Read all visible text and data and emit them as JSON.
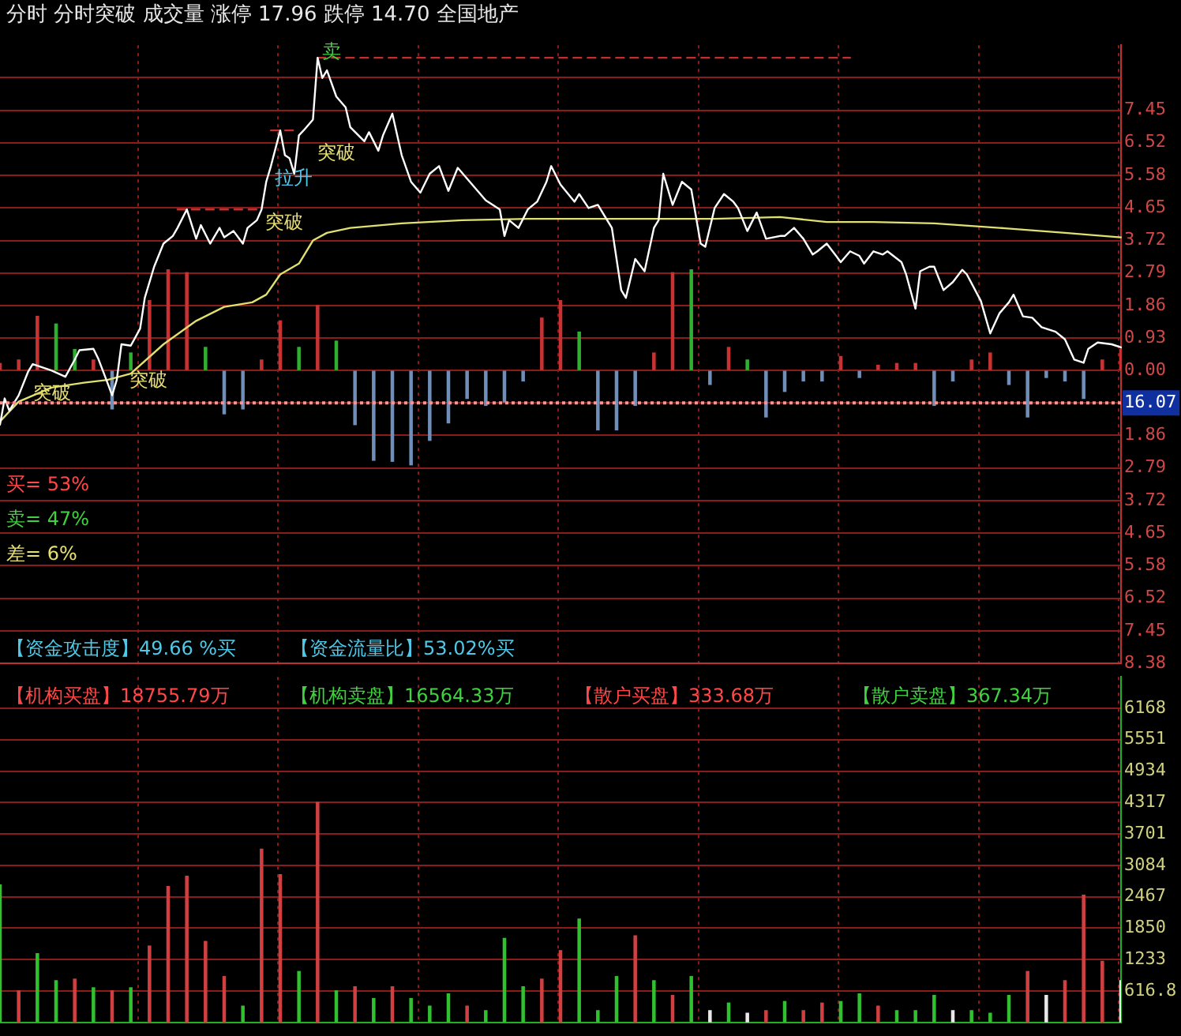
{
  "chart_data": [
    {
      "type": "line",
      "title": "分时 分时突破 成交量 涨停 17.96 跌停 14.70 全国地产",
      "categories": [
        null,
        null,
        null,
        null,
        null,
        null,
        null,
        null,
        null,
        null,
        null,
        null,
        null,
        null,
        null,
        null,
        null,
        null,
        null,
        null,
        null,
        null,
        null,
        null,
        null,
        null,
        null,
        null,
        null,
        null,
        null,
        null,
        null,
        null,
        null,
        null,
        null,
        null,
        null,
        null,
        null,
        null,
        null,
        null,
        null,
        null,
        null,
        null,
        null,
        null,
        null,
        null,
        null,
        null,
        null,
        null,
        null,
        null,
        null,
        null,
        null,
        null,
        null,
        null,
        null,
        null,
        null,
        null,
        null,
        null,
        null,
        null,
        null,
        null,
        null,
        null,
        null,
        null,
        null,
        null,
        null,
        null,
        null,
        null,
        null,
        null,
        null,
        null,
        null,
        null,
        null,
        null,
        null,
        null,
        null,
        null,
        null,
        null,
        null,
        null,
        null,
        null,
        null,
        null,
        null,
        null,
        null,
        null,
        null,
        null,
        null,
        null,
        null,
        null,
        null,
        null,
        null,
        null,
        null,
        null,
        null,
        null,
        null,
        null,
        null,
        null,
        null,
        null,
        null,
        null,
        null,
        null,
        null,
        null,
        null,
        null,
        null,
        null,
        null,
        null,
        null,
        null,
        null,
        null,
        null,
        null,
        null,
        null,
        null,
        null,
        null,
        null,
        null,
        null,
        null,
        null,
        null,
        null,
        null,
        null,
        null,
        null,
        null,
        null,
        null,
        null,
        null,
        null,
        null,
        null,
        null,
        null,
        null,
        null,
        null,
        null,
        null,
        null,
        null,
        null,
        null,
        null,
        null,
        null,
        null,
        null,
        null,
        null,
        null,
        null,
        null,
        null,
        null,
        null,
        null,
        null,
        null,
        null,
        null,
        null,
        null,
        null,
        null,
        null,
        null,
        null,
        null,
        null,
        null,
        null,
        null,
        null,
        null,
        null,
        null,
        null,
        null,
        null,
        null,
        null,
        null,
        null,
        null,
        null,
        null,
        null,
        null,
        null,
        null,
        null,
        null,
        null,
        null,
        null,
        null,
        null,
        null,
        null,
        null,
        null,
        null
      ],
      "ylim": [
        -8.38,
        9.31
      ],
      "yticks": [
        {
          "value": -8.38,
          "label": "8.38"
        },
        {
          "value": -7.45,
          "label": "7.45"
        },
        {
          "value": -6.52,
          "label": "6.52"
        },
        {
          "value": -5.58,
          "label": "5.58"
        },
        {
          "value": -4.65,
          "label": "4.65"
        },
        {
          "value": -3.72,
          "label": "3.72"
        },
        {
          "value": -2.79,
          "label": "2.79"
        },
        {
          "value": -1.86,
          "label": "1.86"
        },
        {
          "value": -0.93,
          "label": null
        },
        {
          "value": 0,
          "label": "0.00"
        },
        0.93,
        1.86,
        2.79,
        3.72,
        4.65,
        5.58,
        6.52,
        7.45,
        {
          "value": 8.38,
          "label": null
        }
      ],
      "grid": true,
      "tick_labels": "y",
      "series": [
        {
          "type": "line",
          "color": "#ffffff",
          "values": [
            -1.55,
            -0.8,
            -1.15,
            null,
            -0.71,
            null,
            -0.04,
            0.18,
            null,
            0.09,
            null,
            0,
            null,
            null,
            -0.18,
            null,
            0.31,
            0.58,
            null,
            null,
            0.62,
            0.35,
            null,
            -0.35,
            -0.71,
            -0.27,
            0.75,
            null,
            0.71,
            null,
            1.2,
            2.08,
            null,
            2.97,
            null,
            3.63,
            null,
            3.85,
            4.08,
            null,
            4.61,
            null,
            3.77,
            4.16,
            null,
            3.63,
            null,
            4.08,
            3.81,
            null,
            3.99,
            null,
            3.63,
            4.08,
            null,
            4.3,
            4.61,
            5.4,
            5.85,
            null,
            6.87,
            6.16,
            6.07,
            5.63,
            6.73,
            6.87,
            null,
            7.18,
            8.95,
            8.37,
            8.59,
            null,
            7.84,
            null,
            7.53,
            6.96,
            null,
            null,
            6.56,
            6.82,
            null,
            6.29,
            6.73,
            null,
            7.35,
            null,
            6.16,
            null,
            5.4,
            null,
            5.09,
            null,
            5.63,
            null,
            5.85,
            null,
            5.14,
            null,
            5.8,
            null,
            5.49,
            null,
            5.18,
            null,
            4.87,
            null,
            null,
            4.61,
            3.85,
            4.3,
            null,
            4.08,
            null,
            4.61,
            null,
            4.83,
            null,
            5.4,
            5.85,
            null,
            5.32,
            null,
            null,
            4.83,
            5.05,
            null,
            4.65,
            null,
            4.74,
            null,
            null,
            4.08,
            null,
            2.3,
            2.08,
            null,
            3.19,
            null,
            2.84,
            null,
            4.08,
            4.3,
            5.63,
            null,
            4.74,
            null,
            5.4,
            null,
            5.18,
            null,
            3.63,
            3.54,
            null,
            4.65,
            null,
            5.05,
            null,
            4.83,
            4.65,
            null,
            3.99,
            null,
            4.52,
            null,
            3.77,
            null,
            null,
            3.85,
            3.85,
            null,
            4.08,
            null,
            3.77,
            null,
            3.32,
            3.41,
            null,
            3.63,
            null,
            3.28,
            3.1,
            null,
            3.41,
            null,
            3.28,
            3.06,
            null,
            3.41,
            null,
            3.32,
            3.41,
            null,
            null,
            3.1,
            2.75,
            null,
            1.77,
            2.84,
            null,
            2.97,
            2.97,
            null,
            2.3,
            null,
            2.53,
            null,
            2.88,
            2.75,
            null,
            null,
            1.99,
            null,
            1.06,
            null,
            1.64,
            null,
            1.95,
            2.17,
            null,
            1.55,
            null,
            1.51,
            null,
            1.24,
            null,
            null,
            1.11,
            null,
            0.89,
            null,
            0.31,
            null,
            0.22,
            0.62,
            null,
            0.8,
            null,
            null,
            0.75,
            null,
            0.66
          ]
        },
        {
          "type": "line",
          "color": "#e0e070",
          "values": [
            -1.46,
            null,
            null,
            null,
            -0.89,
            null,
            null,
            null,
            null,
            null,
            null,
            -0.49,
            null,
            null,
            null,
            null,
            null,
            null,
            -0.35,
            null,
            null,
            null,
            null,
            -0.27,
            null,
            null,
            null,
            null,
            -0.09,
            null,
            null,
            null,
            null,
            null,
            null,
            0.75,
            null,
            null,
            null,
            null,
            null,
            null,
            1.42,
            null,
            null,
            null,
            null,
            null,
            1.82,
            null,
            null,
            null,
            null,
            null,
            1.95,
            null,
            null,
            2.17,
            null,
            null,
            2.75,
            null,
            null,
            null,
            3.06,
            null,
            null,
            3.72,
            null,
            null,
            3.94,
            null,
            null,
            null,
            null,
            4.08,
            null,
            null,
            null,
            null,
            null,
            null,
            null,
            null,
            null,
            null,
            4.21,
            null,
            null,
            null,
            null,
            null,
            null,
            null,
            null,
            null,
            null,
            null,
            null,
            4.3,
            null,
            null,
            null,
            null,
            null,
            null,
            null,
            null,
            null,
            null,
            null,
            null,
            null,
            4.34,
            null,
            null,
            null,
            null,
            null,
            null,
            null,
            null,
            null,
            null,
            null,
            null,
            null,
            null,
            null,
            null,
            null,
            null,
            null,
            4.34,
            null,
            null,
            null,
            null,
            null,
            null,
            null,
            null,
            null,
            null,
            null,
            null,
            null,
            null,
            null,
            null,
            null,
            null,
            null,
            4.34,
            null,
            null,
            null,
            null,
            null,
            null,
            null,
            null,
            null,
            null,
            null,
            null,
            null,
            4.39,
            null,
            null,
            null,
            null,
            null,
            null,
            null,
            null,
            null,
            4.25,
            null,
            null,
            null,
            null,
            null,
            null,
            null,
            null,
            null,
            4.25,
            null,
            null,
            null,
            null,
            null,
            null,
            null,
            null,
            null,
            null,
            null,
            null,
            4.21,
            null,
            null,
            null,
            null,
            null,
            null,
            null,
            null,
            null,
            null,
            null,
            null,
            null,
            4.08,
            null,
            null,
            null,
            null,
            null,
            null,
            null,
            null,
            null,
            null,
            null,
            null,
            null,
            3.94,
            null,
            null,
            null,
            null,
            null,
            null,
            null,
            null,
            null,
            null,
            null,
            3.81
          ]
        },
        {
          "type": "line",
          "color": "#c03030",
          "line_style": "dashed",
          "values": [
            null,
            null,
            null,
            null,
            null,
            null,
            null,
            null,
            null,
            null,
            null,
            null,
            null,
            null,
            null,
            null,
            null,
            null,
            null,
            null,
            null,
            null,
            null,
            null,
            null,
            null,
            null,
            null,
            null,
            null,
            null,
            null,
            null,
            null,
            null,
            null,
            null,
            null,
            4.61,
            4.61,
            4.61,
            4.61,
            4.61,
            4.61,
            4.61,
            4.61,
            4.61,
            4.61,
            4.61,
            4.61,
            4.61,
            4.61,
            4.61,
            4.61,
            4.61,
            4.61,
            4.61,
            null,
            6.87,
            6.87,
            6.87,
            6.87,
            6.87,
            6.87,
            6.87,
            null,
            null,
            null,
            8.95,
            8.95,
            8.95,
            8.95,
            8.95,
            8.95,
            8.95,
            8.95,
            8.95,
            8.95,
            8.95,
            8.95,
            8.95,
            8.95,
            8.95,
            8.95,
            8.95,
            8.95,
            8.95,
            8.95,
            8.95,
            8.95,
            8.95,
            8.95,
            8.95,
            8.95,
            8.95,
            8.95,
            8.95,
            8.95,
            8.95,
            8.95,
            8.95,
            8.95,
            8.95,
            8.95,
            8.95,
            8.95,
            8.95,
            8.95,
            8.95,
            8.95,
            8.95,
            8.95,
            8.95,
            8.95,
            8.95,
            8.95,
            8.95,
            8.95,
            8.95,
            8.95,
            8.95,
            8.95,
            8.95,
            8.95,
            8.95,
            8.95,
            8.95,
            8.95,
            8.95,
            8.95,
            8.95,
            8.95,
            8.95,
            8.95,
            8.95,
            8.95,
            8.95,
            8.95,
            8.95,
            8.95,
            8.95,
            8.95,
            8.95,
            8.95,
            8.95,
            8.95,
            8.95,
            8.95,
            8.95,
            8.95,
            8.95,
            8.95,
            8.95,
            8.95,
            8.95,
            8.95,
            8.95,
            8.95,
            8.95,
            8.95,
            8.95,
            8.95,
            8.95,
            8.95,
            8.95,
            8.95,
            8.95,
            8.95,
            8.95,
            8.95,
            8.95,
            8.95,
            8.95,
            8.95,
            8.95,
            8.95,
            8.95,
            8.95,
            8.95,
            8.95,
            8.95,
            8.95,
            8.95,
            null,
            null,
            null,
            null,
            null,
            null,
            null,
            null,
            null,
            null,
            null,
            null,
            null,
            null,
            null,
            null,
            null,
            null,
            null,
            null,
            null,
            null,
            null,
            null,
            null,
            null,
            null,
            null,
            null,
            null,
            null,
            null,
            null,
            null,
            null,
            null,
            null,
            null,
            null,
            null,
            null,
            null,
            null,
            null,
            null,
            null,
            null,
            null,
            null,
            null,
            null,
            null,
            null,
            null,
            null,
            null,
            null,
            null
          ]
        },
        {
          "type": "bar",
          "values": [
            0.2,
            null,
            null,
            null,
            0.3,
            null,
            null,
            null,
            1.55,
            null,
            null,
            null,
            1.33,
            null,
            null,
            null,
            0.6,
            null,
            null,
            null,
            0.3,
            null,
            null,
            null,
            -1.1,
            null,
            null,
            null,
            0.5,
            null,
            null,
            null,
            2.0,
            null,
            null,
            null,
            2.88,
            null,
            null,
            null,
            2.8,
            null,
            null,
            null,
            0.66,
            null,
            null,
            null,
            -1.24,
            null,
            null,
            null,
            -1.1,
            null,
            null,
            null,
            0.3,
            null,
            null,
            null,
            1.42,
            null,
            null,
            null,
            0.66,
            null,
            null,
            null,
            1.86,
            null,
            null,
            null,
            0.84,
            null,
            null,
            null,
            -1.55,
            null,
            null,
            null,
            -2.57,
            null,
            null,
            null,
            -2.6,
            null,
            null,
            null,
            -2.7,
            null,
            null,
            null,
            -2.0,
            null,
            null,
            null,
            -1.5,
            null,
            null,
            null,
            -0.8,
            null,
            null,
            null,
            -1.0,
            null,
            null,
            null,
            -0.9,
            null,
            null,
            null,
            -0.3,
            null,
            null,
            null,
            1.5,
            null,
            null,
            null,
            2.0,
            null,
            null,
            null,
            1.1,
            null,
            null,
            null,
            -1.7,
            null,
            null,
            null,
            -1.7,
            null,
            null,
            null,
            -1.0,
            null,
            null,
            null,
            0.5,
            null,
            null,
            null,
            2.8,
            null,
            null,
            null,
            2.88,
            null,
            null,
            null,
            -0.4,
            null,
            null,
            null,
            0.66,
            null,
            null,
            null,
            0.3,
            null,
            null,
            null,
            -1.33,
            null,
            null,
            null,
            -0.6,
            null,
            null,
            null,
            -0.3,
            null,
            null,
            null,
            -0.3,
            null,
            null,
            null,
            0.4,
            null,
            null,
            null,
            -0.2,
            null,
            null,
            null,
            0.15,
            null,
            null,
            null,
            0.2,
            null,
            null,
            null,
            0.2,
            null,
            null,
            null,
            -1.0,
            null,
            null,
            null,
            -0.3,
            null,
            null,
            null,
            0.3,
            null,
            null,
            null,
            0.5,
            null,
            null,
            null,
            -0.4,
            null,
            null,
            null,
            -1.33,
            null,
            null,
            null,
            -0.2,
            null,
            null,
            null,
            -0.3,
            null,
            null,
            null,
            -0.8,
            null,
            null,
            null,
            0.3,
            null,
            null,
            null,
            0.6
          ],
          "colors": [
            "#c83232",
            null,
            null,
            null,
            "#c83232",
            null,
            null,
            null,
            "#c83232",
            null,
            null,
            null,
            "#30b030",
            null,
            null,
            null,
            "#30b030",
            null,
            null,
            null,
            "#c83232",
            null,
            null,
            null,
            "#6f8fb8",
            null,
            null,
            null,
            "#30b030",
            null,
            null,
            null,
            "#c83232",
            null,
            null,
            null,
            "#c83232",
            null,
            null,
            null,
            "#c83232",
            null,
            null,
            null,
            "#30b030",
            null,
            null,
            null,
            "#6f8fb8",
            null,
            null,
            null,
            "#6f8fb8",
            null,
            null,
            null,
            "#c83232",
            null,
            null,
            null,
            "#c83232",
            null,
            null,
            null,
            "#30b030",
            null,
            null,
            null,
            "#c83232",
            null,
            null,
            null,
            "#30b030",
            null,
            null,
            null,
            "#6f8fb8",
            null,
            null,
            null,
            "#6f8fb8",
            null,
            null,
            null,
            "#6f8fb8",
            null,
            null,
            null,
            "#6f8fb8",
            null,
            null,
            null,
            "#6f8fb8",
            null,
            null,
            null,
            "#6f8fb8",
            null,
            null,
            null,
            "#6f8fb8",
            null,
            null,
            null,
            "#6f8fb8",
            null,
            null,
            null,
            "#6f8fb8",
            null,
            null,
            null,
            "#6f8fb8",
            null,
            null,
            null,
            "#c83232",
            null,
            null,
            null,
            "#c83232",
            null,
            null,
            null,
            "#30b030",
            null,
            null,
            null,
            "#6f8fb8",
            null,
            null,
            null,
            "#6f8fb8",
            null,
            null,
            null,
            "#6f8fb8",
            null,
            null,
            null,
            "#c83232",
            null,
            null,
            null,
            "#c83232",
            null,
            null,
            null,
            "#30b030",
            null,
            null,
            null,
            "#6f8fb8",
            null,
            null,
            null,
            "#c83232",
            null,
            null,
            null,
            "#30b030",
            null,
            null,
            null,
            "#6f8fb8",
            null,
            null,
            null,
            "#6f8fb8",
            null,
            null,
            null,
            "#6f8fb8",
            null,
            null,
            null,
            "#6f8fb8",
            null,
            null,
            null,
            "#c83232",
            null,
            null,
            null,
            "#6f8fb8",
            null,
            null,
            null,
            "#c83232",
            null,
            null,
            null,
            "#c83232",
            null,
            null,
            null,
            "#c83232",
            null,
            null,
            null,
            "#6f8fb8",
            null,
            null,
            null,
            "#6f8fb8",
            null,
            null,
            null,
            "#c83232",
            null,
            null,
            null,
            "#c83232",
            null,
            null,
            null,
            "#6f8fb8",
            null,
            null,
            null,
            "#6f8fb8",
            null,
            null,
            null,
            "#6f8fb8",
            null,
            null,
            null,
            "#6f8fb8",
            null,
            null,
            null,
            "#6f8fb8",
            null,
            null,
            null,
            "#c83232",
            null,
            null,
            null,
            "#c83232"
          ]
        }
      ],
      "ref_lines": [
        {
          "axis": "y",
          "value": -0.93,
          "color": "#ff9090",
          "line_style": "dotted"
        }
      ],
      "annotations": [
        "突破",
        "突破",
        "突破",
        "拉升",
        "突破",
        "卖",
        "16.07",
        "买= 53%",
        "卖= 47%",
        "差= 6%",
        "【资金攻击度】49.66 %买",
        "【资金流量比】53.02%买"
      ]
    },
    {
      "type": "bar",
      "categories": [
        null,
        null,
        null,
        null,
        null,
        null,
        null,
        null,
        null,
        null,
        null,
        null,
        null,
        null,
        null,
        null,
        null,
        null,
        null,
        null,
        null,
        null,
        null,
        null,
        null,
        null,
        null,
        null,
        null,
        null,
        null,
        null,
        null,
        null,
        null,
        null,
        null,
        null,
        null,
        null,
        null,
        null,
        null,
        null,
        null,
        null,
        null,
        null,
        null,
        null,
        null,
        null,
        null,
        null,
        null,
        null,
        null,
        null,
        null,
        null,
        null,
        null,
        null,
        null,
        null,
        null,
        null,
        null,
        null,
        null,
        null,
        null,
        null,
        null,
        null,
        null,
        null,
        null,
        null,
        null,
        null,
        null,
        null,
        null,
        null,
        null,
        null,
        null,
        null,
        null,
        null,
        null,
        null,
        null,
        null,
        null,
        null,
        null,
        null,
        null,
        null,
        null,
        null,
        null,
        null,
        null,
        null,
        null,
        null,
        null,
        null,
        null,
        null,
        null,
        null,
        null,
        null,
        null,
        null,
        null,
        null,
        null,
        null,
        null,
        null,
        null,
        null,
        null,
        null,
        null,
        null,
        null,
        null,
        null,
        null,
        null,
        null,
        null,
        null,
        null,
        null,
        null,
        null,
        null,
        null,
        null,
        null,
        null,
        null,
        null,
        null,
        null,
        null,
        null,
        null,
        null,
        null,
        null,
        null,
        null,
        null,
        null,
        null,
        null,
        null,
        null,
        null,
        null,
        null,
        null,
        null,
        null,
        null,
        null,
        null,
        null,
        null,
        null,
        null,
        null,
        null,
        null,
        null,
        null,
        null,
        null,
        null,
        null,
        null,
        null,
        null,
        null,
        null,
        null,
        null,
        null,
        null,
        null,
        null,
        null,
        null,
        null,
        null,
        null,
        null,
        null,
        null,
        null,
        null,
        null,
        null,
        null,
        null,
        null,
        null,
        null,
        null,
        null,
        null,
        null,
        null,
        null,
        null,
        null,
        null,
        null,
        null,
        null,
        null,
        null,
        null,
        null,
        null,
        null,
        null,
        null,
        null,
        null,
        null,
        null,
        null
      ],
      "ylim": [
        0,
        6784.8
      ],
      "yticks": [
        616.8,
        1233,
        1850,
        2467,
        3084,
        3701,
        4317,
        4934,
        5551,
        6168
      ],
      "grid": true,
      "tick_labels": "y",
      "values": [
        2700,
        null,
        null,
        null,
        620,
        null,
        null,
        null,
        1350,
        null,
        null,
        null,
        820,
        null,
        null,
        null,
        850,
        null,
        null,
        null,
        680,
        null,
        null,
        null,
        620,
        null,
        null,
        null,
        680,
        null,
        null,
        null,
        1500,
        null,
        null,
        null,
        2670,
        null,
        null,
        null,
        2870,
        null,
        null,
        null,
        1590,
        null,
        null,
        null,
        900,
        null,
        null,
        null,
        320,
        null,
        null,
        null,
        3400,
        null,
        null,
        null,
        2900,
        null,
        null,
        null,
        1000,
        null,
        null,
        null,
        4320,
        null,
        null,
        null,
        620,
        null,
        null,
        null,
        700,
        null,
        null,
        null,
        470,
        null,
        null,
        null,
        700,
        null,
        null,
        null,
        470,
        null,
        null,
        null,
        320,
        null,
        null,
        null,
        560,
        null,
        null,
        null,
        320,
        null,
        null,
        null,
        230,
        null,
        null,
        null,
        1650,
        null,
        null,
        null,
        700,
        null,
        null,
        null,
        850,
        null,
        null,
        null,
        1410,
        null,
        null,
        null,
        2030,
        null,
        null,
        null,
        230,
        null,
        null,
        null,
        900,
        null,
        null,
        null,
        1700,
        null,
        null,
        null,
        820,
        null,
        null,
        null,
        530,
        null,
        null,
        null,
        900,
        null,
        null,
        null,
        230,
        null,
        null,
        null,
        380,
        null,
        null,
        null,
        180,
        null,
        null,
        null,
        230,
        null,
        null,
        null,
        410,
        null,
        null,
        null,
        230,
        null,
        null,
        null,
        380,
        null,
        null,
        null,
        410,
        null,
        null,
        null,
        560,
        null,
        null,
        null,
        320,
        null,
        null,
        null,
        230,
        null,
        null,
        null,
        230,
        null,
        null,
        null,
        530,
        null,
        null,
        null,
        230,
        null,
        null,
        null,
        230,
        null,
        null,
        null,
        180,
        null,
        null,
        null,
        530,
        null,
        null,
        null,
        1000,
        null,
        null,
        null,
        530,
        null,
        null,
        null,
        820,
        null,
        null,
        null,
        2500,
        null,
        null,
        null,
        1200,
        null,
        null,
        null,
        820
      ],
      "colors": [
        "#30c030",
        null,
        null,
        null,
        "#d04040",
        null,
        null,
        null,
        "#30c030",
        null,
        null,
        null,
        "#30c030",
        null,
        null,
        null,
        "#d04040",
        null,
        null,
        null,
        "#30c030",
        null,
        null,
        null,
        "#d04040",
        null,
        null,
        null,
        "#30c030",
        null,
        null,
        null,
        "#d04040",
        null,
        null,
        null,
        "#d04040",
        null,
        null,
        null,
        "#d04040",
        null,
        null,
        null,
        "#d04040",
        null,
        null,
        null,
        "#d04040",
        null,
        null,
        null,
        "#30c030",
        null,
        null,
        null,
        "#d04040",
        null,
        null,
        null,
        "#d04040",
        null,
        null,
        null,
        "#30c030",
        null,
        null,
        null,
        "#d04040",
        null,
        null,
        null,
        "#30c030",
        null,
        null,
        null,
        "#d04040",
        null,
        null,
        null,
        "#30c030",
        null,
        null,
        null,
        "#d04040",
        null,
        null,
        null,
        "#30c030",
        null,
        null,
        null,
        "#30c030",
        null,
        null,
        null,
        "#30c030",
        null,
        null,
        null,
        "#d04040",
        null,
        null,
        null,
        "#30c030",
        null,
        null,
        null,
        "#30c030",
        null,
        null,
        null,
        "#30c030",
        null,
        null,
        null,
        "#d04040",
        null,
        null,
        null,
        "#d04040",
        null,
        null,
        null,
        "#30c030",
        null,
        null,
        null,
        "#30c030",
        null,
        null,
        null,
        "#30c030",
        null,
        null,
        null,
        "#d04040",
        null,
        null,
        null,
        "#30c030",
        null,
        null,
        null,
        "#d04040",
        null,
        null,
        null,
        "#30c030",
        null,
        null,
        null,
        "#e8e8e8",
        null,
        null,
        null,
        "#30c030",
        null,
        null,
        null,
        "#e8e8e8",
        null,
        null,
        null,
        "#d04040",
        null,
        null,
        null,
        "#30c030",
        null,
        null,
        null,
        "#d04040",
        null,
        null,
        null,
        "#d04040",
        null,
        null,
        null,
        "#30c030",
        null,
        null,
        null,
        "#30c030",
        null,
        null,
        null,
        "#d04040",
        null,
        null,
        null,
        "#30c030",
        null,
        null,
        null,
        "#30c030",
        null,
        null,
        null,
        "#30c030",
        null,
        null,
        null,
        "#e8e8e8",
        null,
        null,
        null,
        "#30c030",
        null,
        null,
        null,
        "#30c030",
        null,
        null,
        null,
        "#30c030",
        null,
        null,
        null,
        "#d04040",
        null,
        null,
        null,
        "#e8e8e8",
        null,
        null,
        null,
        "#d04040",
        null,
        null,
        null,
        "#d04040",
        null,
        null,
        null,
        "#d04040",
        null,
        null,
        null,
        "#e8e8e8"
      ],
      "annotations": [
        "【机构买盘】18755.79万",
        "【机构卖盘】16564.33万",
        "【散户买盘】333.68万",
        "【散户卖盘】367.34万"
      ]
    }
  ]
}
